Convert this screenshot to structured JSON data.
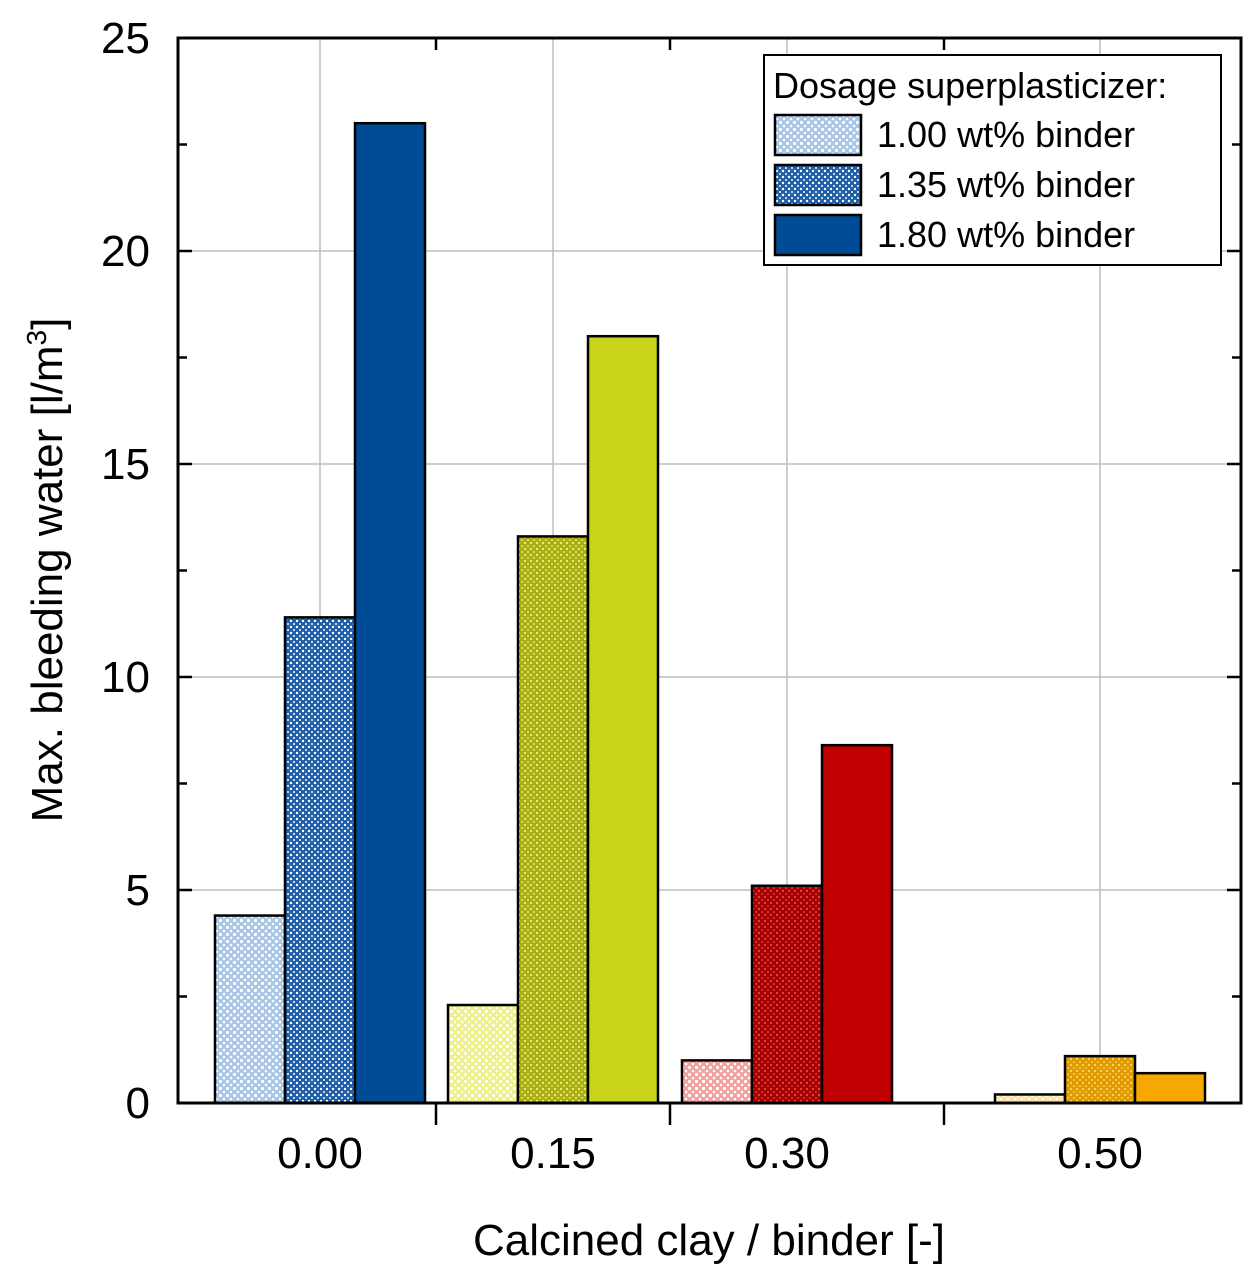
{
  "chart_data": {
    "type": "bar",
    "title": "",
    "xlabel": "Calcined clay / binder [-]",
    "ylabel_main": "Max. bleeding water [l/m",
    "ylabel_sup": "3",
    "ylabel_close": "]",
    "ylim": [
      0,
      25
    ],
    "yticks": [
      0,
      5,
      10,
      15,
      20,
      25
    ],
    "grid": true,
    "categories": [
      "0.00",
      "0.15",
      "0.30",
      "0.50"
    ],
    "legend": {
      "title": "Dosage superplasticizer:",
      "position": "top-right",
      "entries": [
        "1.00 wt% binder",
        "1.35 wt% binder",
        "1.80 wt% binder"
      ]
    },
    "series": [
      {
        "name": "1.00 wt% binder",
        "pattern": "light-dots",
        "values": [
          4.4,
          2.3,
          1.0,
          0.2
        ]
      },
      {
        "name": "1.35 wt% binder",
        "pattern": "dense-dots",
        "values": [
          11.4,
          13.3,
          5.1,
          1.1
        ]
      },
      {
        "name": "1.80 wt% binder",
        "pattern": "solid",
        "values": [
          23.0,
          18.0,
          8.4,
          0.7
        ]
      }
    ],
    "group_colors": {
      "0.00": {
        "light": "#a9c6e6",
        "mid": "#1e5fa8",
        "solid": "#004b96",
        "dot": "#ffffff"
      },
      "0.15": {
        "light": "#eef08a",
        "mid": "#a8ae14",
        "solid": "#c8d419",
        "dot": "#e8ee70"
      },
      "0.30": {
        "light": "#f2a0a0",
        "mid": "#a30000",
        "solid": "#c00000",
        "dot": "#e84040"
      },
      "0.50": {
        "light": "#fde2a0",
        "mid": "#e09a00",
        "solid": "#f7a800",
        "dot": "#fcd060"
      }
    },
    "legend_colors": {
      "light": "#a9c6e6",
      "mid": "#1e5fa8",
      "solid": "#004b96",
      "dot": "#ffffff"
    }
  }
}
